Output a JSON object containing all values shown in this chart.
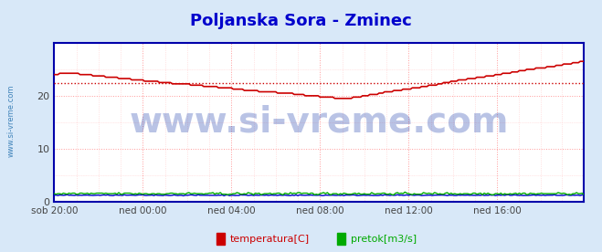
{
  "title": "Poljanska Sora - Zminec",
  "title_color": "#0000cc",
  "title_fontsize": 13,
  "bg_color": "#d8e8f8",
  "plot_bg_color": "#ffffff",
  "watermark": "www.si-vreme.com",
  "watermark_color": "#1a3aaa",
  "watermark_alpha": 0.3,
  "watermark_fontsize": 28,
  "ylabel_color": "#1a6aaa",
  "ylabel_text": "www.si-vreme.com",
  "yticks": [
    0,
    10,
    20
  ],
  "ylim": [
    0,
    30
  ],
  "xlim": [
    0,
    287
  ],
  "x_tick_positions": [
    0,
    48,
    96,
    144,
    192,
    240,
    287
  ],
  "x_tick_labels": [
    "sob 20:00",
    "ned 00:00",
    "ned 04:00",
    "ned 08:00",
    "ned 12:00",
    "ned 12:00",
    "ned 16:00"
  ],
  "grid_color_major": "#ff9999",
  "grid_color_minor": "#ffcccc",
  "avg_line_value": 22.4,
  "avg_line_color": "#cc0000",
  "temp_color": "#cc0000",
  "flow_color": "#00aa00",
  "height_color": "#0000cc",
  "legend_labels": [
    "temperatura[C]",
    "pretok[m3/s]"
  ],
  "legend_colors": [
    "#cc0000",
    "#00aa00"
  ],
  "n_points": 288
}
